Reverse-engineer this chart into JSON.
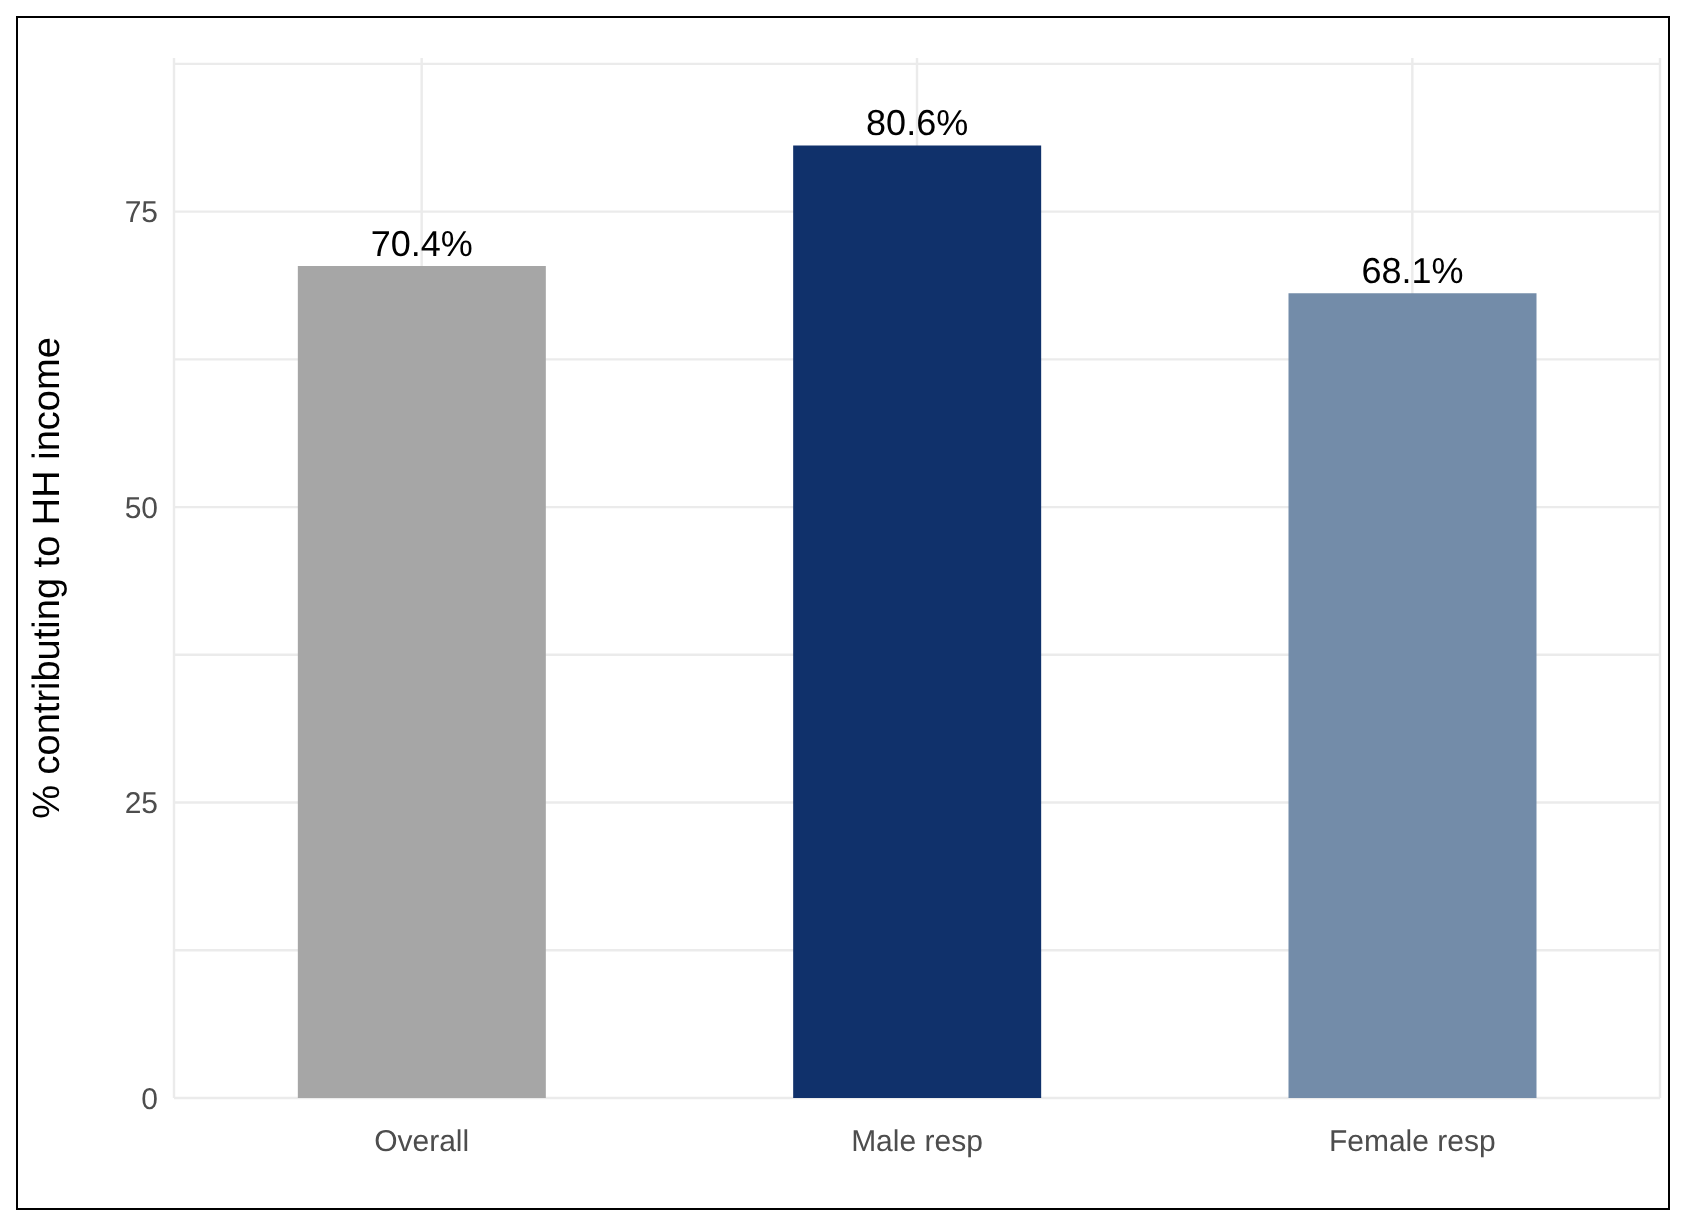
{
  "chart_data": {
    "type": "bar",
    "ylabel": "% contributing to HH income",
    "categories": [
      "Overall",
      "Male resp",
      "Female resp"
    ],
    "values": [
      70.4,
      80.6,
      68.1
    ],
    "colors": [
      "#a6a6a6",
      "#10316b",
      "#738ca9"
    ],
    "value_labels": [
      "70.4%",
      "80.6%",
      "68.1%"
    ],
    "ylim": [
      0,
      88
    ],
    "yticks": [
      0,
      {
        "value": 12.5,
        "label": null
      },
      25,
      {
        "value": 37.5,
        "label": null
      },
      50,
      {
        "value": 62.5,
        "label": null
      },
      75,
      {
        "value": 87.5,
        "label": null
      }
    ],
    "grid": true
  }
}
